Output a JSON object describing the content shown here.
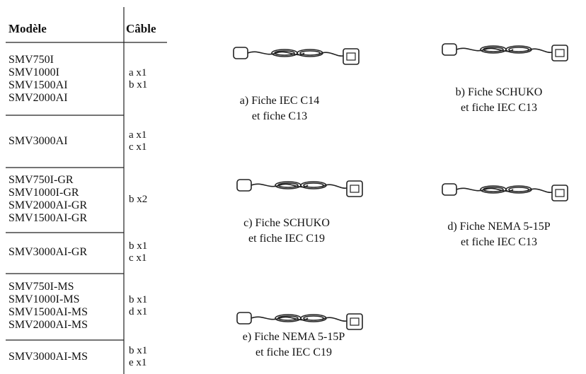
{
  "table": {
    "header": [
      "Modèle",
      "Câble"
    ],
    "rows": [
      {
        "models": [
          "SMV750I",
          "SMV1000I",
          "SMV1500AI",
          "SMV2000AI"
        ],
        "cables": [
          "a x1",
          "b x1"
        ]
      },
      {
        "models": [
          "SMV3000AI"
        ],
        "cables": [
          "a x1",
          "c x1"
        ]
      },
      {
        "models": [
          "SMV750I-GR",
          "SMV1000I-GR",
          "SMV2000AI-GR",
          "SMV1500AI-GR"
        ],
        "cables": [
          "b x2"
        ]
      },
      {
        "models": [
          "SMV3000AI-GR"
        ],
        "cables": [
          "b x1",
          "c x1"
        ]
      },
      {
        "models": [
          "SMV750I-MS",
          "SMV1000I-MS",
          "SMV1500AI-MS",
          "SMV2000AI-MS"
        ],
        "cables": [
          "b x1",
          "d x1"
        ]
      },
      {
        "models": [
          "SMV3000AI-MS"
        ],
        "cables": [
          "b x1",
          "e x1"
        ]
      }
    ]
  },
  "cables": [
    {
      "caption": [
        "a) Fiche IEC C14",
        "et fiche C13"
      ]
    },
    {
      "caption": [
        "b) Fiche SCHUKO",
        "et fiche IEC C13"
      ]
    },
    {
      "caption": [
        "c) Fiche SCHUKO",
        "et fiche IEC C19"
      ]
    },
    {
      "caption": [
        "d) Fiche NEMA 5-15P",
        "et fiche IEC C13"
      ]
    },
    {
      "caption": [
        "e) Fiche NEMA 5-15P",
        "et fiche IEC C19"
      ]
    }
  ]
}
